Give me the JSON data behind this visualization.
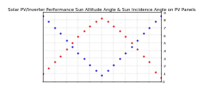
{
  "title": "Solar PV/Inverter Performance Sun Altitude Angle & Sun Incidence Angle on PV Panels",
  "blue_label": "Sun Altitude Angle",
  "red_label": "Sun Incidence Angle on PV Panels",
  "background": "#ffffff",
  "grid_color": "#999999",
  "blue_color": "#0000dd",
  "red_color": "#dd0000",
  "blue_x": [
    0,
    1,
    2,
    3,
    4,
    5,
    6,
    7,
    8,
    9,
    10,
    11,
    12,
    13,
    14,
    15,
    16,
    17,
    18,
    19,
    20
  ],
  "blue_y": [
    0.85,
    0.78,
    0.7,
    0.62,
    0.53,
    0.45,
    0.37,
    0.29,
    0.21,
    0.14,
    0.08,
    0.14,
    0.21,
    0.29,
    0.37,
    0.45,
    0.53,
    0.62,
    0.7,
    0.78,
    0.85
  ],
  "red_x": [
    0,
    1,
    2,
    3,
    4,
    5,
    6,
    7,
    8,
    9,
    10,
    11,
    12,
    13,
    14,
    15,
    16,
    17,
    18,
    19,
    20
  ],
  "red_y": [
    0.1,
    0.17,
    0.25,
    0.33,
    0.42,
    0.5,
    0.58,
    0.65,
    0.72,
    0.78,
    0.82,
    0.78,
    0.72,
    0.65,
    0.58,
    0.5,
    0.42,
    0.33,
    0.25,
    0.12,
    0.05
  ],
  "ylim": [
    0.0,
    0.9
  ],
  "xlim": [
    0,
    20
  ],
  "ytick_vals": [
    0.0,
    0.1,
    0.2,
    0.3,
    0.4,
    0.5,
    0.6,
    0.7,
    0.8,
    0.9
  ],
  "ytick_labels": [
    "0",
    ".1",
    ".2",
    ".3",
    ".4",
    ".5",
    ".6",
    ".7",
    ".8",
    ".9"
  ],
  "xtick_count": 11,
  "title_fontsize": 4.0,
  "tick_fontsize": 3.2,
  "marker_size": 1.2,
  "linewidth": 0.3,
  "grid_linewidth": 0.3,
  "spine_linewidth": 0.4
}
